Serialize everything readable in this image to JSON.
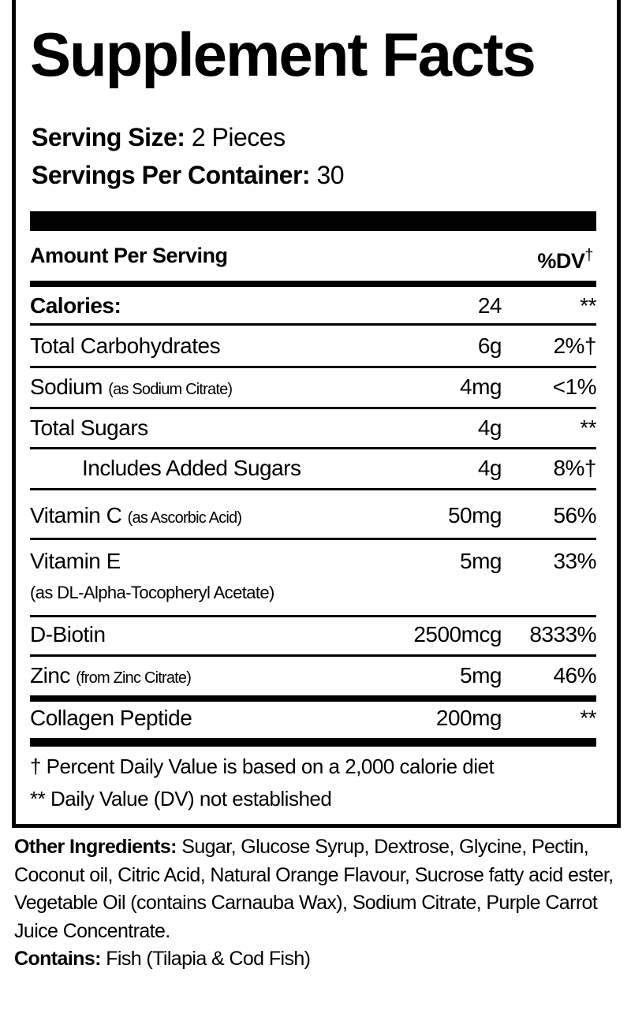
{
  "title": "Supplement Facts",
  "serving_size": {
    "label": "Serving Size:",
    "value": "2 Pieces"
  },
  "servings_per_container": {
    "label": "Servings Per Container:",
    "value": "30"
  },
  "header": {
    "amount_per_serving": "Amount Per Serving",
    "dv": "%DV",
    "dv_mark": "†"
  },
  "rows": [
    {
      "name": "Calories:",
      "note": "",
      "amount": "24",
      "dv": "**"
    },
    {
      "name": "Total Carbohydrates",
      "note": "",
      "amount": "6g",
      "dv": "2%†"
    },
    {
      "name": "Sodium",
      "note": "(as Sodium Citrate)",
      "amount": "4mg",
      "dv": "<1%"
    },
    {
      "name": "Total Sugars",
      "note": "",
      "amount": "4g",
      "dv": "**"
    },
    {
      "name": "Includes Added Sugars",
      "note": "",
      "amount": "4g",
      "dv": "8%†"
    },
    {
      "name": "Vitamin C",
      "note": "(as Ascorbic Acid)",
      "amount": "50mg",
      "dv": "56%"
    },
    {
      "name": "Vitamin E",
      "note": "(as DL-Alpha-Tocopheryl Acetate)",
      "amount": "5mg",
      "dv": "33%"
    },
    {
      "name": "D-Biotin",
      "note": "",
      "amount": "2500mcg",
      "dv": "8333%"
    },
    {
      "name": "Zinc",
      "note": "(from Zinc Citrate)",
      "amount": "5mg",
      "dv": "46%"
    },
    {
      "name": "Collagen Peptide",
      "note": "",
      "amount": "200mg",
      "dv": "**"
    }
  ],
  "footnotes": [
    "† Percent Daily Value is based on a 2,000 calorie diet",
    "** Daily Value (DV) not established"
  ],
  "other_ingredients": {
    "label": "Other Ingredients:",
    "text": "Sugar, Glucose Syrup, Dextrose, Glycine, Pectin, Coconut oil, Citric Acid, Natural Orange Flavour, Sucrose fatty acid ester, Vegetable Oil (contains Carnauba Wax), Sodium Citrate, Purple Carrot Juice Concentrate."
  },
  "contains": {
    "label": "Contains:",
    "text": "Fish (Tilapia & Cod Fish)"
  }
}
